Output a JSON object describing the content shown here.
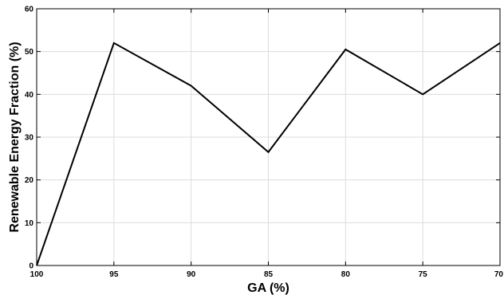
{
  "chart_data": {
    "type": "line",
    "title": "",
    "xlabel": "GA (%)",
    "ylabel": "Renewable Energy Fraction (%)",
    "x": [
      100,
      95,
      90,
      85,
      80,
      75,
      70
    ],
    "x_tick_labels": [
      "100",
      "95",
      "90",
      "85",
      "80",
      "75",
      "70"
    ],
    "x_reversed": true,
    "xlim": [
      100,
      70
    ],
    "ylim": [
      0,
      60
    ],
    "y_ticks": [
      0,
      10,
      20,
      30,
      40,
      50,
      60
    ],
    "series": [
      {
        "values": [
          0,
          52,
          42,
          26.5,
          50.5,
          40,
          52
        ],
        "color": "#000000"
      }
    ],
    "grid": true
  }
}
